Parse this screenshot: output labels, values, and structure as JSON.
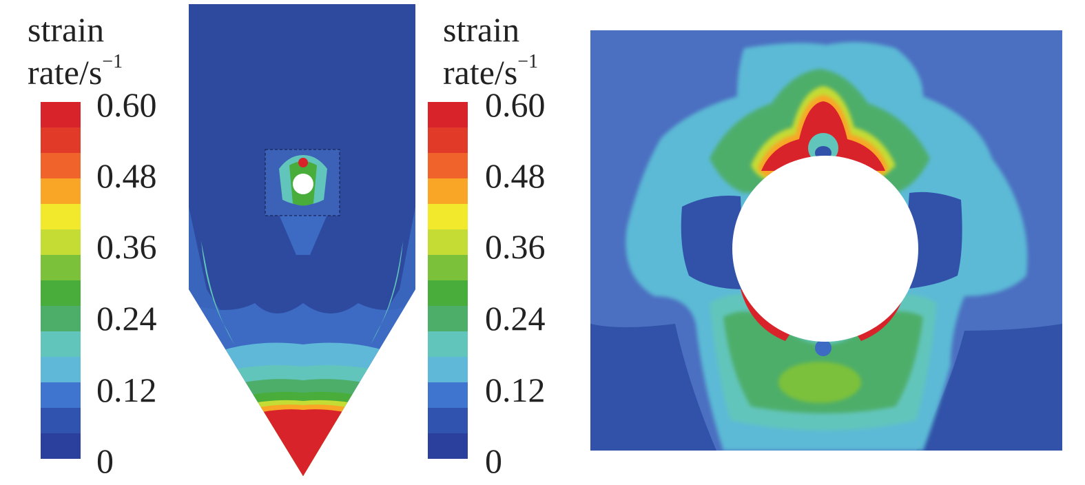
{
  "legend_left": {
    "title_line1": "strain",
    "title_line2": "rate/s",
    "title_sup": "−1",
    "ticks": [
      "0.60",
      "0.48",
      "0.36",
      "0.24",
      "0.12",
      "0"
    ]
  },
  "legend_right": {
    "title_line1": "strain",
    "title_line2": "rate/s",
    "title_sup": "−1",
    "ticks": [
      "0.60",
      "0.48",
      "0.36",
      "0.24",
      "0.12",
      "0"
    ]
  },
  "colormap": {
    "range": [
      0,
      0.6
    ],
    "stops": [
      "#2b3f9c",
      "#3153b0",
      "#3f74cf",
      "#5fb8d8",
      "#62c5bb",
      "#4dae6a",
      "#49ad3c",
      "#7bc13a",
      "#c5dc34",
      "#f2e92c",
      "#f9a526",
      "#f0632a",
      "#e23a29",
      "#d8232a"
    ]
  }
}
